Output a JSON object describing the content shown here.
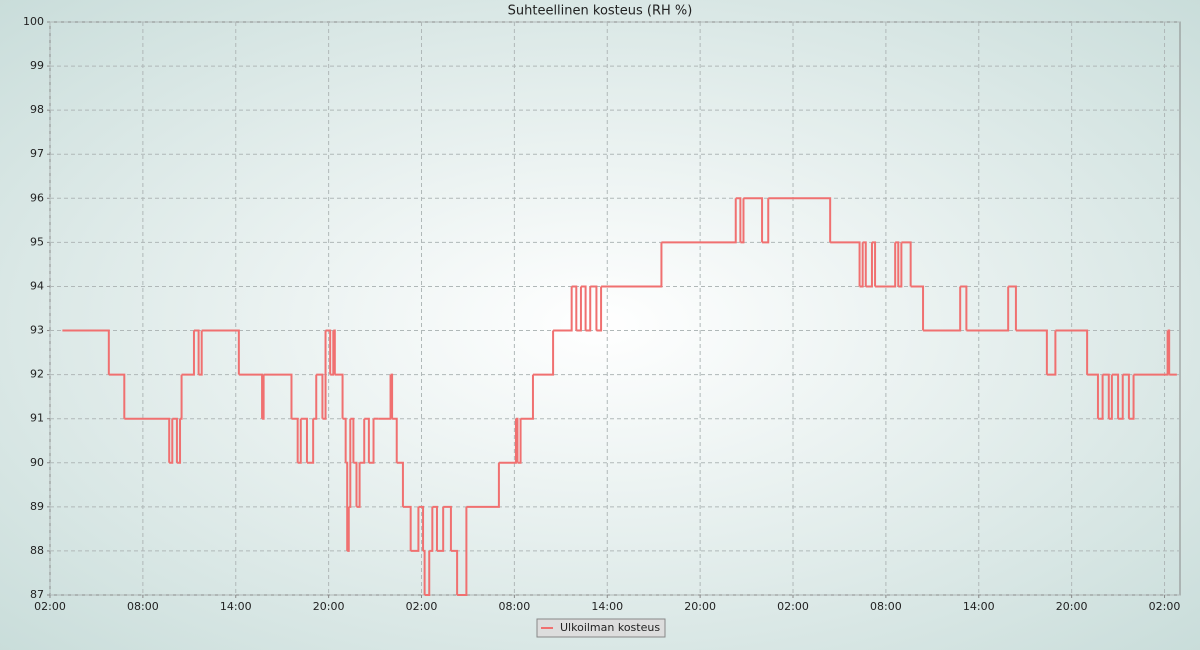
{
  "chart_data": {
    "type": "step",
    "title": "Suhteellinen kosteus (RH %)",
    "series": [
      {
        "name": "Ulkoilman kosteus",
        "color": "#f07070",
        "x": [
          0.8,
          3.8,
          4.8,
          7.7,
          7.9,
          8.2,
          8.4,
          8.5,
          9.3,
          9.6,
          9.8,
          12.2,
          13.7,
          13.8,
          15.6,
          16.0,
          16.2,
          16.6,
          17.0,
          17.2,
          17.6,
          17.8,
          18.1,
          18.3,
          18.4,
          18.9,
          19.1,
          19.2,
          19.3,
          19.4,
          19.6,
          19.8,
          20.0,
          20.3,
          20.6,
          20.9,
          21.2,
          22.0,
          22.1,
          22.4,
          22.8,
          23.3,
          23.8,
          24.1,
          24.2,
          24.5,
          24.7,
          25.0,
          25.4,
          25.9,
          26.3,
          26.9,
          29.0,
          30.1,
          30.2,
          30.4,
          31.2,
          32.5,
          33.7,
          34.0,
          34.3,
          34.6,
          34.9,
          35.3,
          35.6,
          39.5,
          44.3,
          44.6,
          44.8,
          46.0,
          46.4,
          50.4,
          52.3,
          52.5,
          52.7,
          53.1,
          53.3,
          54.6,
          54.8,
          55.0,
          55.6,
          56.4,
          58.8,
          59.2,
          61.9,
          62.4,
          64.4,
          64.95,
          67.0,
          67.7,
          68.0,
          68.4,
          68.6,
          69.0,
          69.3,
          69.7,
          70.0,
          72.2,
          72.3,
          72.8
        ],
        "values": [
          93,
          92,
          91,
          90,
          91,
          90,
          91,
          92,
          93,
          92,
          93,
          92,
          91,
          92,
          91,
          90,
          91,
          90,
          91,
          92,
          91,
          93,
          92,
          93,
          92,
          91,
          90,
          88,
          89,
          91,
          90,
          89,
          90,
          91,
          90,
          91,
          91,
          92,
          91,
          90,
          89,
          88,
          89,
          88,
          87,
          88,
          89,
          88,
          89,
          88,
          87,
          89,
          90,
          91,
          90,
          91,
          92,
          93,
          94,
          93,
          94,
          93,
          94,
          93,
          94,
          95,
          96,
          95,
          96,
          95,
          96,
          95,
          94,
          95,
          94,
          95,
          94,
          95,
          94,
          95,
          94,
          93,
          94,
          93,
          94,
          93,
          92,
          93,
          92,
          91,
          92,
          91,
          92,
          91,
          92,
          91,
          92,
          93,
          92,
          92
        ]
      }
    ],
    "xlim": [
      0,
      73
    ],
    "xticks": [
      {
        "value": 0,
        "label": "02:00"
      },
      {
        "value": 6,
        "label": "08:00"
      },
      {
        "value": 12,
        "label": "14:00"
      },
      {
        "value": 18,
        "label": "20:00"
      },
      {
        "value": 24,
        "label": "02:00"
      },
      {
        "value": 30,
        "label": "08:00"
      },
      {
        "value": 36,
        "label": "14:00"
      },
      {
        "value": 42,
        "label": "20:00"
      },
      {
        "value": 48,
        "label": "02:00"
      },
      {
        "value": 54,
        "label": "08:00"
      },
      {
        "value": 60,
        "label": "14:00"
      },
      {
        "value": 66,
        "label": "20:00"
      },
      {
        "value": 72,
        "label": "02:00"
      }
    ],
    "ylim": [
      87,
      100
    ],
    "yticks": [
      87,
      88,
      89,
      90,
      91,
      92,
      93,
      94,
      95,
      96,
      97,
      98,
      99,
      100
    ],
    "grid": true,
    "legend": "bottom"
  }
}
